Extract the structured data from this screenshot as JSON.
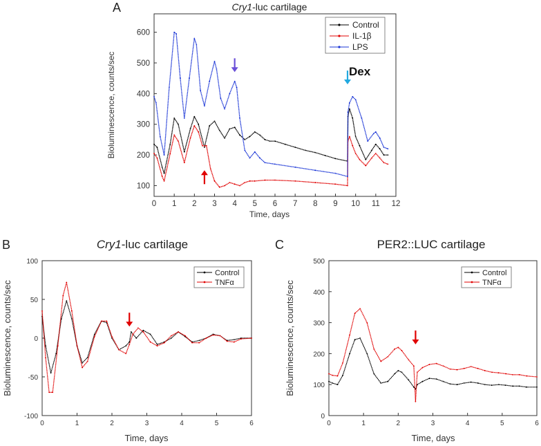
{
  "chart_data": [
    {
      "panel": "A",
      "type": "line",
      "title_italic": "Cry1",
      "title_rest": "-luc cartilage",
      "xlabel": "Time, days",
      "ylabel": "Bioluminescence, counts/sec",
      "xlim": [
        0,
        12
      ],
      "ylim": [
        65,
        660
      ],
      "xticks": [
        0,
        1,
        2,
        3,
        4,
        5,
        6,
        7,
        8,
        9,
        10,
        11,
        12
      ],
      "yticks": [
        100,
        200,
        300,
        400,
        500,
        600
      ],
      "legend": [
        "Control",
        "IL-1β",
        "LPS"
      ],
      "colors": {
        "Control": "#000000",
        "IL-1β": "#e00000",
        "LPS": "#1a35d6"
      },
      "annotations": [
        {
          "text": "",
          "x": 4.0,
          "y": 470,
          "color": "#6a4fd8",
          "direction": "down"
        },
        {
          "text": "",
          "x": 2.5,
          "y": 150,
          "color": "#e00000",
          "direction": "up"
        },
        {
          "text": "Dex",
          "x": 9.6,
          "y": 430,
          "color": "#22a9e0",
          "direction": "down"
        }
      ],
      "series": [
        {
          "name": "Control",
          "x": [
            0,
            0.15,
            0.4,
            0.5,
            0.8,
            1.0,
            1.2,
            1.5,
            1.8,
            2.0,
            2.2,
            2.5,
            2.75,
            3.0,
            3.25,
            3.5,
            3.75,
            4.0,
            4.25,
            4.5,
            4.75,
            5.0,
            5.25,
            5.5,
            5.75,
            6.0,
            6.5,
            7,
            7.5,
            8,
            8.5,
            9,
            9.6,
            9.62,
            9.7,
            9.85,
            10.0,
            10.2,
            10.5,
            10.8,
            11.0,
            11.2,
            11.4,
            11.6
          ],
          "y": [
            235,
            225,
            160,
            140,
            235,
            320,
            300,
            210,
            285,
            325,
            300,
            225,
            295,
            310,
            280,
            255,
            285,
            290,
            265,
            250,
            260,
            275,
            265,
            250,
            245,
            245,
            235,
            225,
            215,
            208,
            198,
            188,
            180,
            325,
            350,
            320,
            260,
            230,
            185,
            215,
            235,
            220,
            200,
            200
          ]
        },
        {
          "name": "IL-1β",
          "x": [
            0,
            0.15,
            0.4,
            0.5,
            0.8,
            1.0,
            1.2,
            1.5,
            1.8,
            2.0,
            2.2,
            2.4,
            2.6,
            2.8,
            3.0,
            3.25,
            3.5,
            3.75,
            4.0,
            4.25,
            4.5,
            4.75,
            5.0,
            5.5,
            6,
            7,
            8,
            9,
            9.6,
            9.62,
            9.7,
            9.85,
            10.0,
            10.2,
            10.5,
            10.8,
            11.0,
            11.2,
            11.4,
            11.6
          ],
          "y": [
            205,
            190,
            130,
            115,
            205,
            265,
            245,
            175,
            255,
            295,
            275,
            230,
            230,
            155,
            115,
            95,
            100,
            110,
            105,
            100,
            110,
            115,
            115,
            118,
            118,
            115,
            110,
            105,
            100,
            245,
            260,
            230,
            205,
            185,
            165,
            190,
            205,
            190,
            175,
            170
          ]
        },
        {
          "name": "LPS",
          "x": [
            0,
            0.1,
            0.3,
            0.5,
            0.75,
            1.0,
            1.1,
            1.3,
            1.5,
            1.75,
            2.0,
            2.1,
            2.3,
            2.5,
            2.75,
            3.0,
            3.1,
            3.3,
            3.5,
            3.75,
            4.0,
            4.1,
            4.25,
            4.5,
            4.75,
            5.0,
            5.25,
            5.5,
            6,
            7,
            8,
            9,
            9.6,
            9.62,
            9.7,
            9.85,
            10.0,
            10.3,
            10.6,
            10.9,
            11.0,
            11.2,
            11.4,
            11.6
          ],
          "y": [
            390,
            370,
            260,
            200,
            420,
            600,
            595,
            450,
            320,
            450,
            580,
            560,
            410,
            360,
            440,
            505,
            480,
            385,
            350,
            400,
            440,
            420,
            320,
            215,
            190,
            210,
            190,
            175,
            170,
            160,
            150,
            140,
            130,
            340,
            370,
            390,
            380,
            320,
            245,
            270,
            275,
            255,
            225,
            220
          ]
        }
      ]
    },
    {
      "panel": "B",
      "type": "line",
      "title_italic": "Cry1",
      "title_rest": "-luc cartilage",
      "xlabel": "Time, days",
      "ylabel": "Bioluminescence, counts/sec",
      "xlim": [
        0,
        6
      ],
      "ylim": [
        -100,
        100
      ],
      "xticks": [
        0,
        1,
        2,
        3,
        4,
        5,
        6
      ],
      "yticks": [
        -100,
        -50,
        0,
        50,
        100
      ],
      "legend": [
        "Control",
        "TNFα"
      ],
      "colors": {
        "Control": "#000000",
        "TNFα": "#e00000"
      },
      "annotations": [
        {
          "text": "",
          "x": 2.5,
          "y": 15,
          "color": "#e00000",
          "direction": "down"
        }
      ],
      "series": [
        {
          "name": "Control",
          "x": [
            0,
            0.1,
            0.25,
            0.4,
            0.55,
            0.7,
            0.85,
            1.0,
            1.15,
            1.3,
            1.5,
            1.7,
            1.85,
            2.0,
            2.2,
            2.4,
            2.5,
            2.55,
            2.7,
            2.9,
            3.1,
            3.3,
            3.5,
            3.7,
            3.9,
            4.1,
            4.3,
            4.5,
            4.7,
            4.9,
            5.1,
            5.3,
            5.5,
            5.7,
            6.0
          ],
          "y": [
            28,
            -10,
            -45,
            -20,
            25,
            48,
            25,
            -10,
            -32,
            -25,
            5,
            22,
            20,
            0,
            -15,
            -10,
            -5,
            8,
            0,
            10,
            5,
            -8,
            -5,
            0,
            8,
            2,
            -5,
            -3,
            0,
            5,
            3,
            -3,
            -2,
            0,
            0
          ]
        },
        {
          "name": "TNFα",
          "x": [
            0,
            0.1,
            0.2,
            0.3,
            0.45,
            0.6,
            0.7,
            0.85,
            1.0,
            1.15,
            1.3,
            1.5,
            1.7,
            1.85,
            2.0,
            2.2,
            2.4,
            2.5,
            2.6,
            2.75,
            2.9,
            3.1,
            3.3,
            3.5,
            3.7,
            3.9,
            4.1,
            4.3,
            4.5,
            4.7,
            4.9,
            5.1,
            5.3,
            5.5,
            5.7,
            6.0
          ],
          "y": [
            35,
            -25,
            -70,
            -70,
            -10,
            55,
            72,
            35,
            -10,
            -38,
            -30,
            2,
            22,
            22,
            2,
            -15,
            -20,
            -8,
            5,
            13,
            8,
            -5,
            -10,
            -6,
            3,
            8,
            3,
            -6,
            -6,
            0,
            4,
            3,
            -4,
            -5,
            -1,
            0
          ]
        }
      ]
    },
    {
      "panel": "C",
      "type": "line",
      "title": "PER2::LUC cartilage",
      "xlabel": "Time, days",
      "ylabel": "Bioluminescence, counts/sec",
      "xlim": [
        0,
        6
      ],
      "ylim": [
        0,
        500
      ],
      "xticks": [
        0,
        1,
        2,
        3,
        4,
        5,
        6
      ],
      "yticks": [
        0,
        100,
        200,
        300,
        400,
        500
      ],
      "legend": [
        "Control",
        "TNFα"
      ],
      "colors": {
        "Control": "#000000",
        "TNFα": "#e00000"
      },
      "annotations": [
        {
          "text": "",
          "x": 2.5,
          "y": 230,
          "color": "#e00000",
          "direction": "down"
        }
      ],
      "series": [
        {
          "name": "Control",
          "x": [
            0,
            0.1,
            0.25,
            0.4,
            0.6,
            0.75,
            0.9,
            1.1,
            1.3,
            1.5,
            1.7,
            1.9,
            2.0,
            2.1,
            2.3,
            2.45,
            2.5,
            2.55,
            2.7,
            2.9,
            3.1,
            3.3,
            3.5,
            3.7,
            3.9,
            4.1,
            4.3,
            4.5,
            4.7,
            4.9,
            5.1,
            5.3,
            5.5,
            5.7,
            6.0
          ],
          "y": [
            110,
            105,
            100,
            130,
            200,
            245,
            250,
            200,
            135,
            105,
            110,
            135,
            145,
            140,
            115,
            92,
            85,
            100,
            110,
            120,
            118,
            110,
            102,
            100,
            105,
            108,
            105,
            100,
            98,
            100,
            98,
            95,
            95,
            92,
            92
          ]
        },
        {
          "name": "TNFα",
          "x": [
            0,
            0.1,
            0.25,
            0.4,
            0.6,
            0.75,
            0.9,
            1.1,
            1.3,
            1.5,
            1.7,
            1.9,
            2.0,
            2.1,
            2.3,
            2.45,
            2.5,
            2.55,
            2.7,
            2.9,
            3.1,
            3.3,
            3.5,
            3.7,
            3.9,
            4.1,
            4.3,
            4.5,
            4.7,
            4.9,
            5.1,
            5.3,
            5.5,
            5.7,
            6.0
          ],
          "y": [
            135,
            130,
            128,
            170,
            260,
            330,
            345,
            300,
            215,
            175,
            190,
            215,
            220,
            210,
            180,
            160,
            45,
            140,
            155,
            165,
            168,
            160,
            150,
            148,
            152,
            158,
            152,
            145,
            140,
            138,
            135,
            132,
            132,
            128,
            125
          ]
        }
      ]
    }
  ]
}
